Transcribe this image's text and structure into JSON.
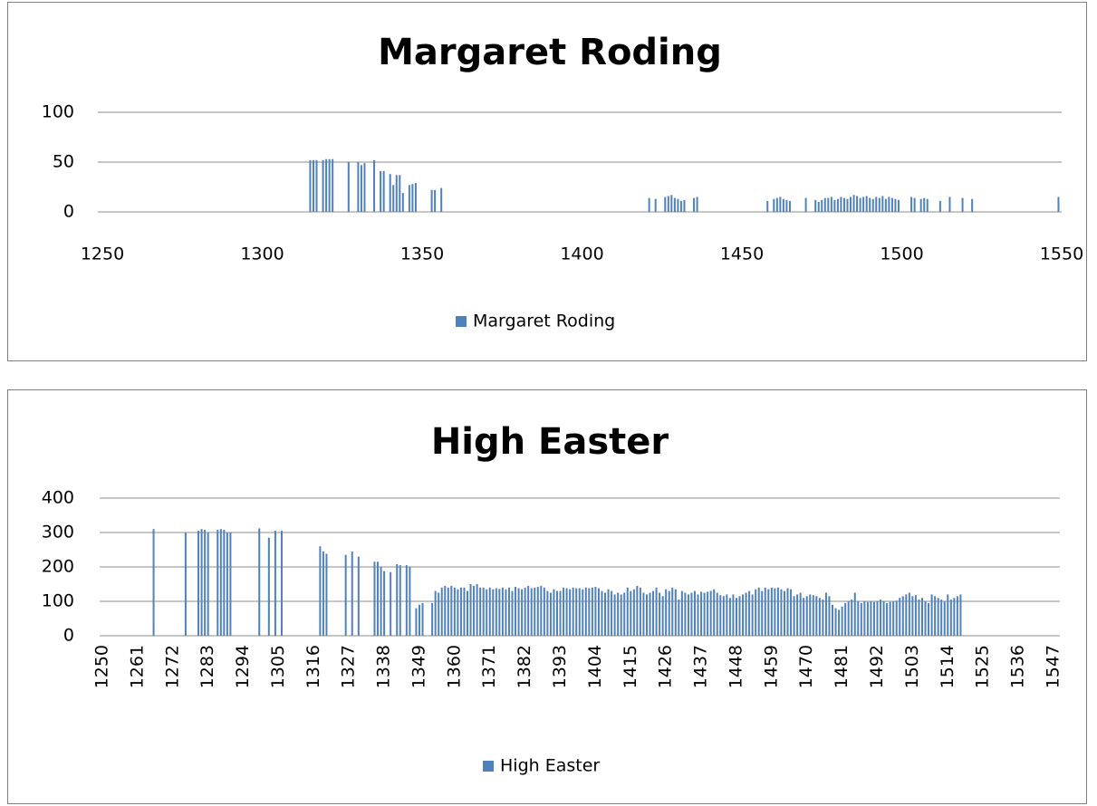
{
  "chart_data": [
    {
      "type": "bar",
      "title": "Margaret Roding",
      "x": [
        1315,
        1316,
        1317,
        1319,
        1320,
        1321,
        1322,
        1327,
        1330,
        1331,
        1332,
        1335,
        1337,
        1338,
        1340,
        1341,
        1342,
        1343,
        1344,
        1346,
        1347,
        1348,
        1353,
        1354,
        1356,
        1421,
        1423,
        1426,
        1427,
        1428,
        1429,
        1430,
        1431,
        1432,
        1435,
        1436,
        1458,
        1460,
        1461,
        1462,
        1463,
        1464,
        1465,
        1470,
        1473,
        1474,
        1475,
        1476,
        1477,
        1478,
        1479,
        1480,
        1481,
        1482,
        1483,
        1484,
        1485,
        1486,
        1487,
        1488,
        1489,
        1490,
        1491,
        1492,
        1493,
        1494,
        1495,
        1496,
        1497,
        1498,
        1499,
        1503,
        1504,
        1506,
        1507,
        1508,
        1512,
        1515,
        1519,
        1522,
        1549
      ],
      "series": [
        {
          "name": "Margaret Roding",
          "color": "#4f81bd",
          "values": [
            52,
            52,
            52,
            52,
            53,
            53,
            53,
            50,
            50,
            47,
            49,
            52,
            41,
            41,
            38,
            27,
            37,
            37,
            19,
            27,
            28,
            29,
            22,
            22,
            24,
            14,
            13,
            15,
            16,
            17,
            14,
            13,
            11,
            12,
            14,
            15,
            11,
            13,
            14,
            15,
            13,
            12,
            11,
            14,
            12,
            10,
            12,
            14,
            14,
            15,
            12,
            13,
            15,
            14,
            13,
            15,
            17,
            16,
            14,
            15,
            16,
            14,
            13,
            15,
            14,
            16,
            13,
            15,
            14,
            13,
            12,
            15,
            14,
            13,
            14,
            13,
            11,
            15,
            14,
            13,
            15
          ]
        }
      ],
      "xlim": [
        1250,
        1550
      ],
      "xticks": [
        1250,
        1300,
        1350,
        1400,
        1450,
        1500,
        1550
      ],
      "ylim": [
        0,
        100
      ],
      "yticks": [
        0,
        50,
        100
      ],
      "grid": true,
      "legend": "bottom"
    },
    {
      "type": "bar",
      "title": "High Easter",
      "x": [
        1266,
        1276,
        1280,
        1281,
        1282,
        1283,
        1286,
        1287,
        1288,
        1289,
        1290,
        1299,
        1302,
        1304,
        1306,
        1318,
        1319,
        1320,
        1326,
        1328,
        1330,
        1335,
        1336,
        1337,
        1338,
        1340,
        1342,
        1343,
        1345,
        1346,
        1348,
        1349,
        1350,
        1353,
        1354,
        1355,
        1356,
        1357,
        1358,
        1359,
        1360,
        1361,
        1362,
        1363,
        1364,
        1365,
        1366,
        1367,
        1368,
        1369,
        1370,
        1371,
        1372,
        1373,
        1374,
        1375,
        1376,
        1377,
        1378,
        1379,
        1380,
        1381,
        1382,
        1383,
        1384,
        1385,
        1386,
        1387,
        1388,
        1389,
        1390,
        1391,
        1392,
        1393,
        1394,
        1395,
        1396,
        1397,
        1398,
        1399,
        1400,
        1401,
        1402,
        1403,
        1404,
        1405,
        1406,
        1407,
        1408,
        1409,
        1410,
        1411,
        1412,
        1413,
        1414,
        1415,
        1416,
        1417,
        1418,
        1419,
        1420,
        1421,
        1422,
        1423,
        1424,
        1425,
        1426,
        1427,
        1428,
        1429,
        1430,
        1431,
        1432,
        1433,
        1434,
        1435,
        1436,
        1437,
        1438,
        1439,
        1440,
        1441,
        1442,
        1443,
        1444,
        1445,
        1446,
        1447,
        1448,
        1449,
        1450,
        1451,
        1452,
        1453,
        1454,
        1455,
        1456,
        1457,
        1458,
        1459,
        1460,
        1461,
        1462,
        1463,
        1464,
        1465,
        1466,
        1467,
        1468,
        1469,
        1470,
        1471,
        1472,
        1473,
        1474,
        1475,
        1476,
        1477,
        1478,
        1479,
        1480,
        1481,
        1482,
        1483,
        1484,
        1485,
        1486,
        1487,
        1488,
        1489,
        1490,
        1491,
        1492,
        1493,
        1494,
        1495,
        1496,
        1497,
        1498,
        1499,
        1500,
        1501,
        1502,
        1503,
        1504,
        1505,
        1506,
        1507,
        1508,
        1509,
        1510,
        1511,
        1512,
        1513,
        1514,
        1515,
        1516,
        1517,
        1518
      ],
      "series": [
        {
          "name": "High Easter",
          "color": "#4f81bd",
          "values": [
            310,
            300,
            305,
            310,
            308,
            300,
            308,
            310,
            308,
            300,
            300,
            312,
            285,
            305,
            305,
            260,
            245,
            238,
            235,
            245,
            230,
            215,
            215,
            200,
            188,
            185,
            208,
            205,
            205,
            200,
            80,
            90,
            95,
            95,
            130,
            125,
            140,
            145,
            140,
            145,
            140,
            135,
            140,
            140,
            130,
            150,
            145,
            150,
            140,
            140,
            135,
            140,
            135,
            138,
            136,
            140,
            135,
            140,
            130,
            142,
            138,
            135,
            140,
            145,
            138,
            140,
            142,
            145,
            140,
            130,
            125,
            135,
            130,
            130,
            140,
            138,
            135,
            140,
            138,
            138,
            135,
            140,
            138,
            140,
            142,
            138,
            130,
            125,
            135,
            130,
            120,
            125,
            120,
            125,
            140,
            130,
            135,
            145,
            140,
            125,
            120,
            125,
            130,
            140,
            125,
            115,
            135,
            130,
            140,
            135,
            105,
            130,
            125,
            120,
            125,
            130,
            120,
            128,
            125,
            128,
            130,
            135,
            125,
            118,
            115,
            120,
            110,
            120,
            110,
            115,
            120,
            125,
            130,
            120,
            135,
            140,
            130,
            140,
            135,
            140,
            138,
            140,
            135,
            130,
            138,
            135,
            115,
            120,
            125,
            110,
            115,
            120,
            118,
            115,
            110,
            105,
            125,
            115,
            90,
            80,
            75,
            85,
            95,
            100,
            105,
            125,
            100,
            95,
            100,
            98,
            100,
            98,
            100,
            105,
            100,
            95,
            98,
            100,
            102,
            110,
            115,
            120,
            125,
            115,
            118,
            105,
            110,
            100,
            95,
            120,
            115,
            110,
            105,
            100,
            120,
            105,
            110,
            115,
            120
          ]
        }
      ],
      "xlim": [
        1250,
        1549
      ],
      "xticks": [
        1250,
        1261,
        1272,
        1283,
        1294,
        1305,
        1316,
        1327,
        1338,
        1349,
        1360,
        1371,
        1382,
        1393,
        1404,
        1415,
        1426,
        1437,
        1448,
        1459,
        1470,
        1481,
        1492,
        1503,
        1514,
        1525,
        1536,
        1547
      ],
      "ylim": [
        0,
        400
      ],
      "yticks": [
        0,
        100,
        200,
        300,
        400
      ],
      "grid": true,
      "legend": "bottom"
    }
  ]
}
